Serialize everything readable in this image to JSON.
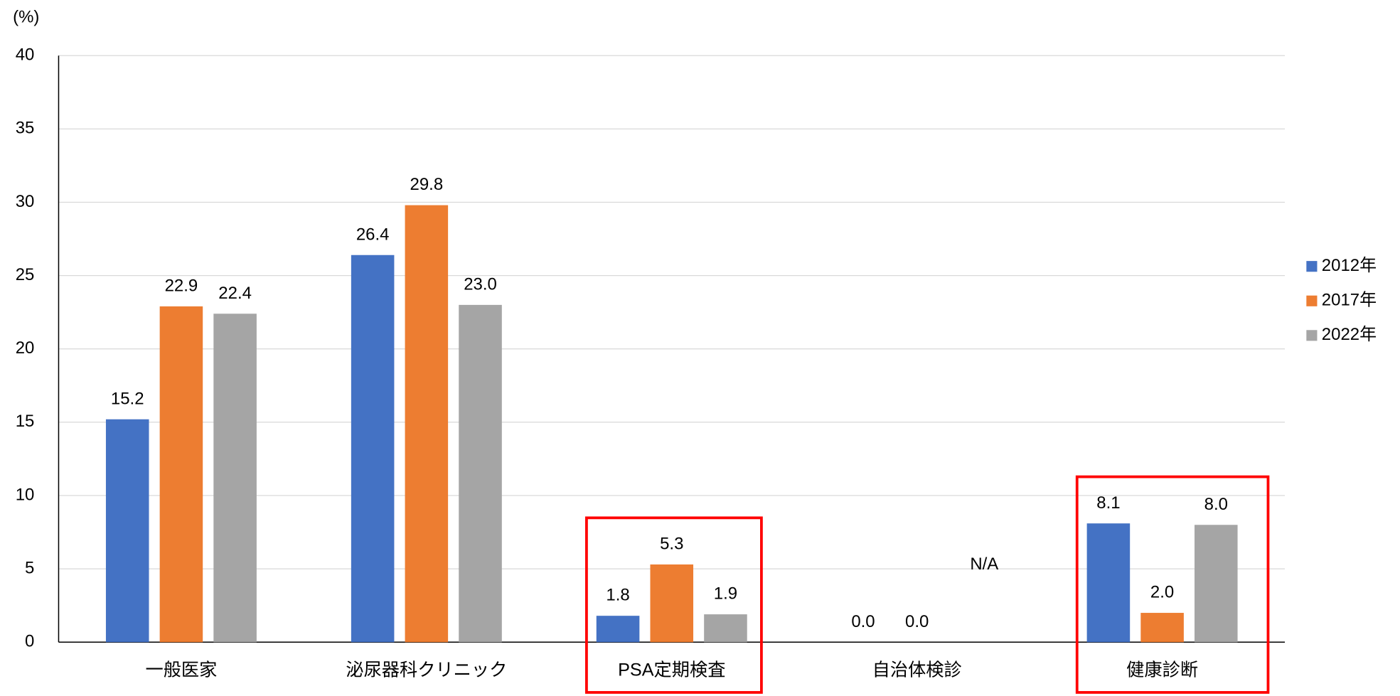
{
  "chart_data": {
    "type": "bar",
    "y_label": "(%)",
    "categories": [
      "一般医家",
      "泌尿器科クリニック",
      "PSA定期検査",
      "自治体検診",
      "健康診断"
    ],
    "series": [
      {
        "name": "2012年",
        "color": "#4472c4",
        "values": [
          15.2,
          26.4,
          1.8,
          0,
          8.1
        ],
        "value_labels": [
          "15.2",
          "26.4",
          "1.8",
          "0.0",
          "8.1"
        ]
      },
      {
        "name": "2017年",
        "color": "#ed7d31",
        "values": [
          22.9,
          29.8,
          5.3,
          0,
          2
        ],
        "value_labels": [
          "22.9",
          "29.8",
          "5.3",
          "0.0",
          "2.0"
        ]
      },
      {
        "name": "2022年",
        "color": "#a5a5a5",
        "values": [
          22.4,
          23,
          1.9,
          null,
          8
        ],
        "value_labels": [
          "22.4",
          "23.0",
          "1.9",
          "N/A",
          "8.0"
        ]
      }
    ],
    "ylim": [
      0,
      40
    ],
    "yticks": [
      0,
      5,
      10,
      15,
      20,
      25,
      30,
      35,
      40
    ],
    "grid": true,
    "legend": "right",
    "highlight_categories": [
      2,
      4
    ],
    "highlight_color": "#ff0000"
  }
}
